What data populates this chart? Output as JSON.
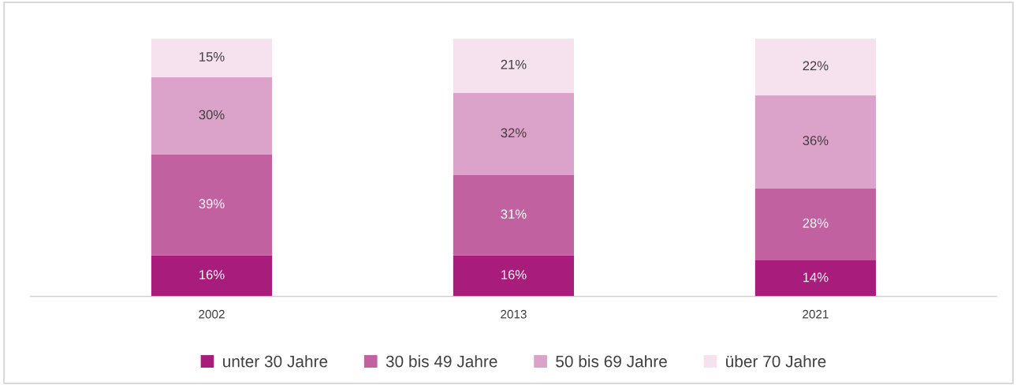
{
  "chart_data": {
    "type": "bar",
    "stacked": true,
    "categories": [
      "2002",
      "2013",
      "2021"
    ],
    "series": [
      {
        "name": "unter 30 Jahre",
        "color": "#a81c7c",
        "values": [
          16,
          16,
          14
        ],
        "value_labels": [
          "16%",
          "16%",
          "14%"
        ]
      },
      {
        "name": "30 bis 49 Jahre",
        "color": "#c2619f",
        "values": [
          39,
          31,
          28
        ],
        "value_labels": [
          "39%",
          "31%",
          "28%"
        ]
      },
      {
        "name": "50 bis 69 Jahre",
        "color": "#dba3c9",
        "values": [
          30,
          32,
          36
        ],
        "value_labels": [
          "30%",
          "32%",
          "36%"
        ]
      },
      {
        "name": "über 70 Jahre",
        "color": "#f6e2ee",
        "values": [
          15,
          21,
          22
        ],
        "value_labels": [
          "15%",
          "21%",
          "22%"
        ]
      }
    ],
    "legend": "bottom"
  }
}
